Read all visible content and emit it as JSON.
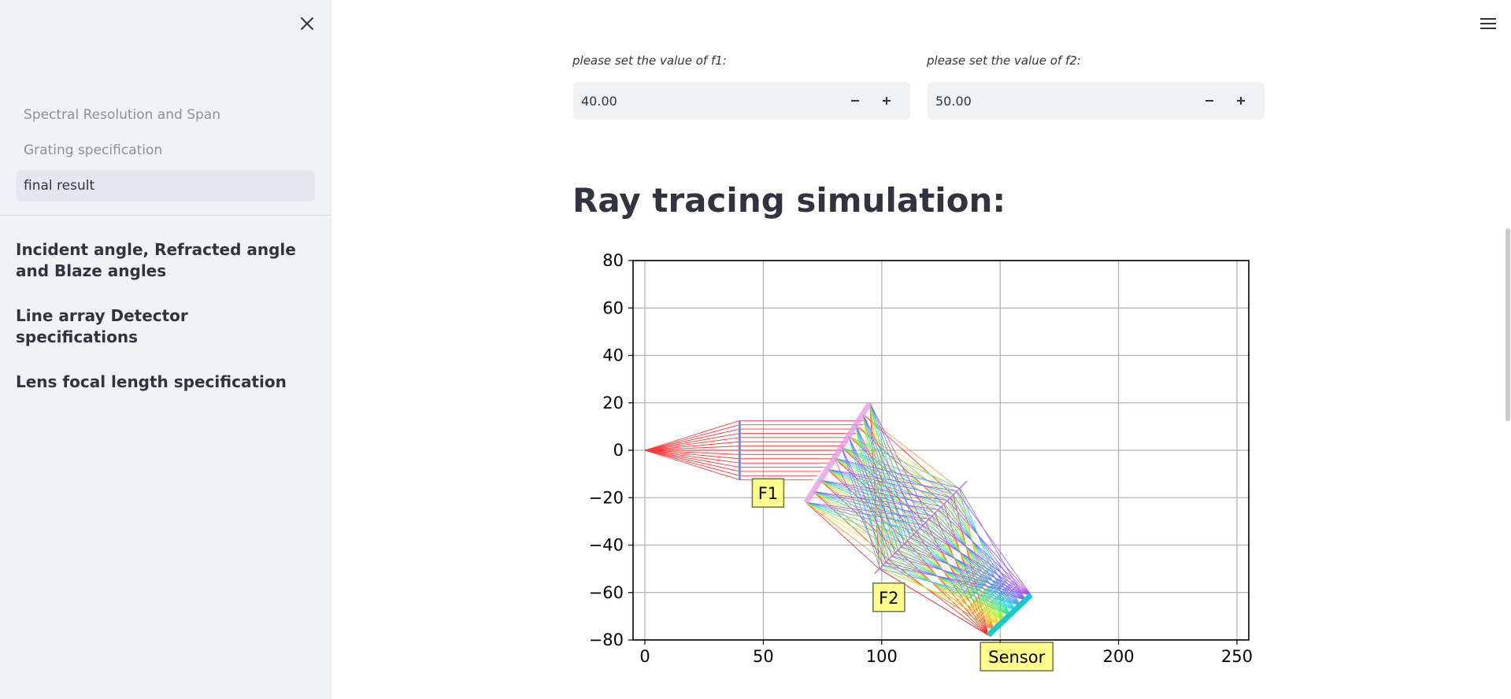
{
  "sidebar": {
    "pages": [
      {
        "label": "Spectral Resolution and Span",
        "active": false
      },
      {
        "label": "Grating specification",
        "active": false
      },
      {
        "label": "final result",
        "active": true
      }
    ],
    "toc": [
      {
        "label": "Incident angle, Refracted angle and Blaze angles"
      },
      {
        "label": "Line array Detector specifications"
      },
      {
        "label": "Lens focal length specification"
      }
    ]
  },
  "inputs": {
    "f1": {
      "label": "please set the value of f1:",
      "value": "40.00"
    },
    "f2": {
      "label": "please set the value of f2:",
      "value": "50.00"
    }
  },
  "section": {
    "title": "Ray tracing simulation:"
  },
  "chart_data": {
    "type": "line",
    "title": "",
    "xlabel": "",
    "ylabel": "",
    "xlim": [
      -5,
      255
    ],
    "ylim": [
      -80,
      80
    ],
    "xticks": [
      0,
      50,
      100,
      150,
      200,
      250
    ],
    "yticks": [
      80,
      60,
      40,
      20,
      0,
      -20,
      -40,
      -60,
      -80
    ],
    "grid": true,
    "annotations": [
      {
        "text": "F1",
        "x": 52,
        "y": -18
      },
      {
        "text": "F2",
        "x": 103,
        "y": -62
      },
      {
        "text": "Sensor",
        "x": 157,
        "y": -87
      }
    ],
    "components": {
      "source": {
        "x": 0,
        "y": 0
      },
      "lens1": {
        "x": 40,
        "y_top": 12.5,
        "y_bottom": -12.5
      },
      "grating": {
        "x1": 68,
        "y1": -22,
        "x2": 95,
        "y2": 20
      },
      "lens2": {
        "x1": 97,
        "y1": -52,
        "x2": 136,
        "y2": -13
      },
      "sensor": {
        "x1": 145,
        "y1": -78,
        "x2": 163,
        "y2": -61
      }
    },
    "ray_colors": [
      "#ff0000",
      "#ff7a00",
      "#ffd500",
      "#7cff00",
      "#00e676",
      "#00d6e0",
      "#2f8cff",
      "#6a4dff",
      "#9b30ff"
    ]
  }
}
